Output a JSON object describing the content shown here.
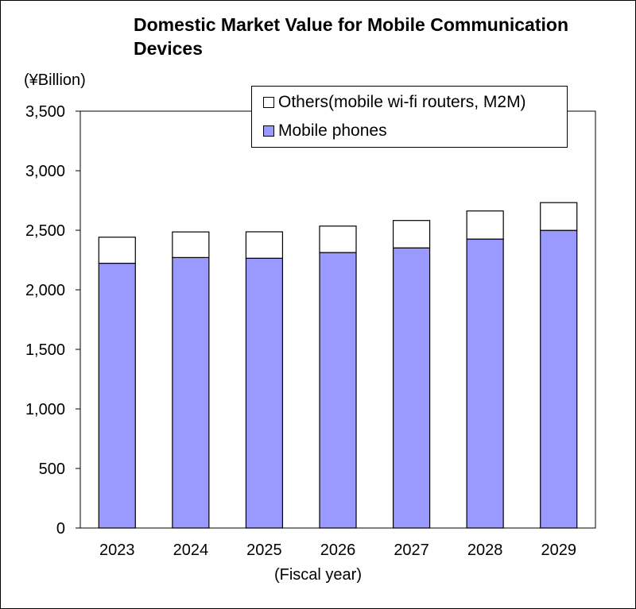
{
  "chart_data": {
    "type": "bar",
    "stacked": true,
    "title": "Domestic Market Value for Mobile Communication Devices",
    "unit_label": "(¥Billion)",
    "xlabel": "(Fiscal year)",
    "categories": [
      "2023",
      "2024",
      "2025",
      "2026",
      "2027",
      "2028",
      "2029"
    ],
    "series": [
      {
        "name": "Mobile phones",
        "color": "#9999ff",
        "values": [
          2223,
          2271,
          2265,
          2313,
          2352,
          2426,
          2499
        ]
      },
      {
        "name": "Others(mobile wi-fi routers, M2M)",
        "color": "#ffffff",
        "values": [
          219,
          215,
          222,
          222,
          230,
          236,
          233
        ]
      }
    ],
    "ylim": [
      0,
      3500
    ],
    "yticks": [
      0,
      500,
      1000,
      1500,
      2000,
      2500,
      3000,
      3500
    ],
    "ytick_labels": [
      "0",
      "500",
      "1,000",
      "1,500",
      "2,000",
      "2,500",
      "3,000",
      "3,500"
    ],
    "grid": false,
    "legend_position": "top-right"
  }
}
